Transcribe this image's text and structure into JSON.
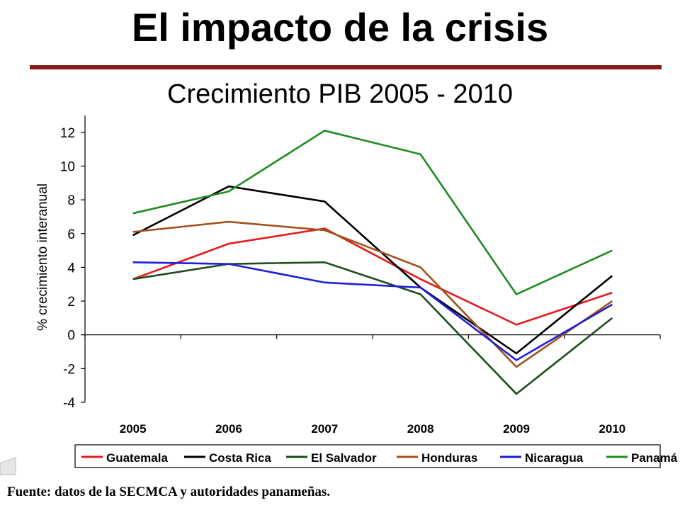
{
  "slide": {
    "title": "El impacto de la crisis",
    "source": "Fuente: datos de la SECMCA y autoridades panameñas.",
    "accent_color": "#8b1a1a"
  },
  "chart_data": {
    "type": "line",
    "title": "Crecimiento PIB 2005 - 2010",
    "xlabel": "",
    "ylabel": "% crecimiento interanual",
    "categories": [
      "2005",
      "2006",
      "2007",
      "2008",
      "2009",
      "2010"
    ],
    "ylim": [
      -4,
      13
    ],
    "yticks": [
      12,
      10,
      8,
      6,
      4,
      2,
      0,
      -2,
      -4
    ],
    "grid": false,
    "legend_position": "bottom",
    "series": [
      {
        "name": "Guatemala",
        "color": "#e41a1c",
        "values": [
          3.3,
          5.4,
          6.3,
          3.3,
          0.6,
          2.5
        ]
      },
      {
        "name": "Costa Rica",
        "color": "#000000",
        "values": [
          5.9,
          8.8,
          7.9,
          2.8,
          -1.1,
          3.5
        ]
      },
      {
        "name": "El Salvador",
        "color": "#1d4d1d",
        "values": [
          3.3,
          4.2,
          4.3,
          2.4,
          -3.5,
          1.0
        ]
      },
      {
        "name": "Honduras",
        "color": "#a0521c",
        "values": [
          6.1,
          6.7,
          6.2,
          4.0,
          -1.9,
          2.0
        ]
      },
      {
        "name": "Nicaragua",
        "color": "#1f1fd6",
        "values": [
          4.3,
          4.2,
          3.1,
          2.8,
          -1.5,
          1.8
        ]
      },
      {
        "name": "Panamá",
        "color": "#1e8c1e",
        "values": [
          7.2,
          8.5,
          12.1,
          10.7,
          2.4,
          5.0
        ]
      }
    ]
  }
}
